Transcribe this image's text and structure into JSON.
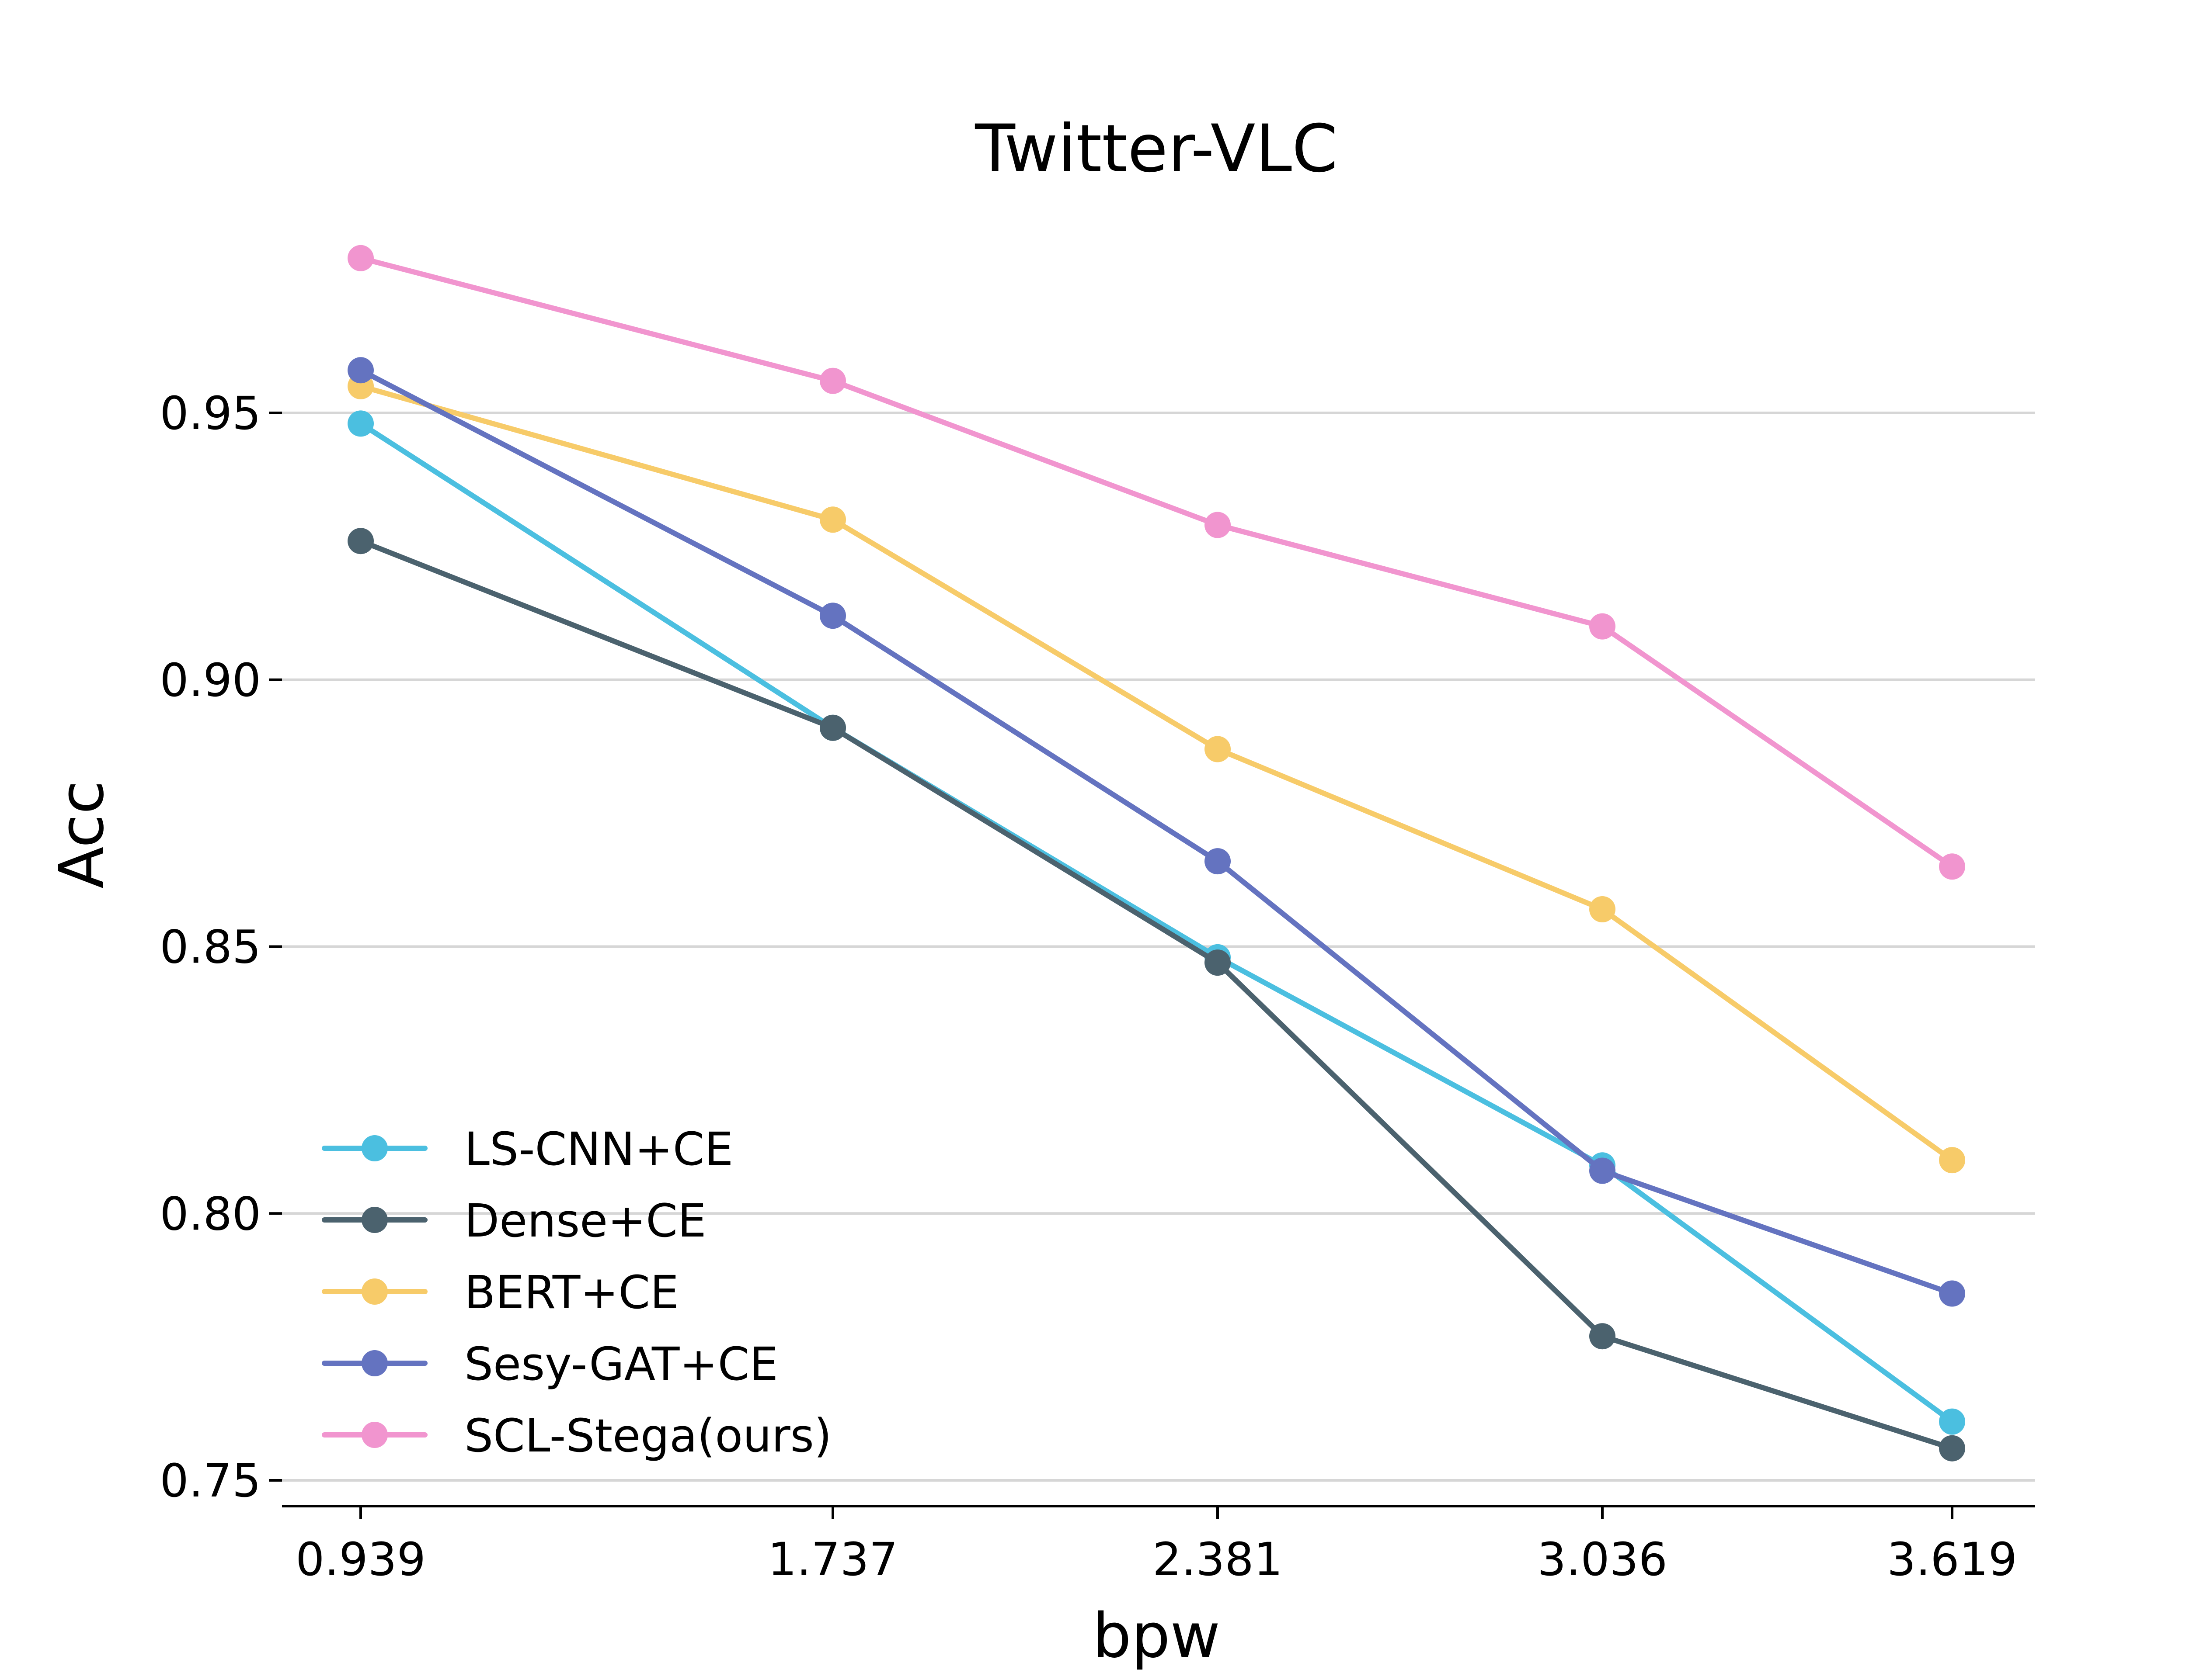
{
  "chart_data": {
    "type": "line",
    "title": "Twitter-VLC",
    "xlabel": "bpw",
    "ylabel": "Acc",
    "categories": [
      "0.939",
      "1.737",
      "2.381",
      "3.036",
      "3.619"
    ],
    "x": [
      0.939,
      1.737,
      2.381,
      3.036,
      3.619
    ],
    "ylim": [
      0.745,
      0.985
    ],
    "yticks": [
      "0.75",
      "0.80",
      "0.85",
      "0.90",
      "0.95"
    ],
    "grid": "horizontal",
    "legend_position": "lower-left",
    "series": [
      {
        "name": "LS-CNN+CE",
        "color": "#4bbfe0",
        "values": [
          0.948,
          0.891,
          0.848,
          0.809,
          0.761
        ]
      },
      {
        "name": "Dense+CE",
        "color": "#4b626e",
        "values": [
          0.926,
          0.891,
          0.847,
          0.777,
          0.756
        ]
      },
      {
        "name": "BERT+CE",
        "color": "#f7cb69",
        "values": [
          0.955,
          0.93,
          0.887,
          0.857,
          0.81
        ]
      },
      {
        "name": "Sesy-GAT+CE",
        "color": "#6473c0",
        "values": [
          0.958,
          0.912,
          0.866,
          0.808,
          0.785
        ]
      },
      {
        "name": "SCL-Stega(ours)",
        "color": "#f195cf",
        "values": [
          0.979,
          0.956,
          0.929,
          0.91,
          0.865
        ]
      }
    ]
  }
}
